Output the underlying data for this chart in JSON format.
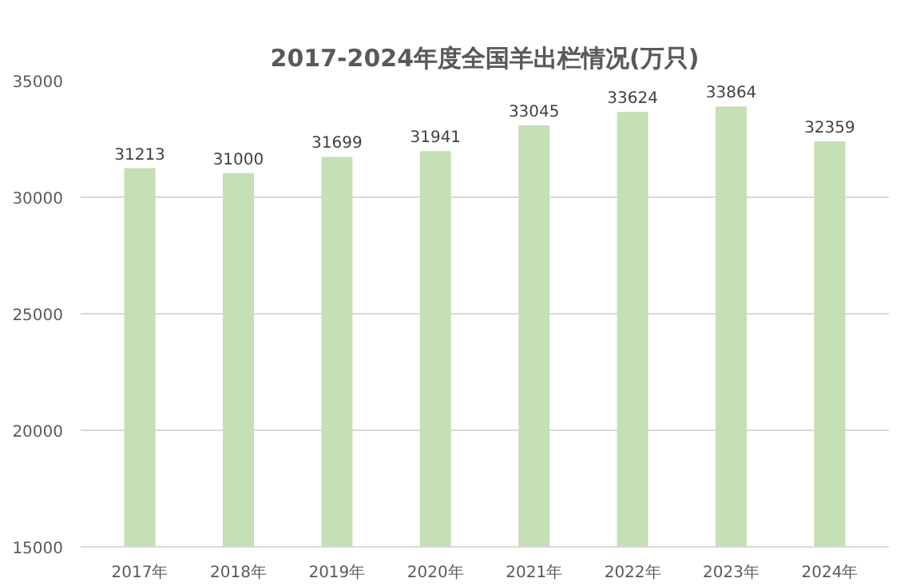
{
  "chart_data": {
    "type": "bar",
    "title": "2017-2024年度全国羊出栏情况(万只)",
    "categories": [
      "2017年",
      "2018年",
      "2019年",
      "2020年",
      "2021年",
      "2022年",
      "2023年",
      "2024年"
    ],
    "values": [
      31213,
      31000,
      31699,
      31941,
      33045,
      33624,
      33864,
      32359
    ],
    "color": "#c5e0b4",
    "ylim": [
      15000,
      35000
    ],
    "yticks": [
      15000,
      20000,
      25000,
      30000,
      35000
    ],
    "grid": "y",
    "data_labels": true
  }
}
